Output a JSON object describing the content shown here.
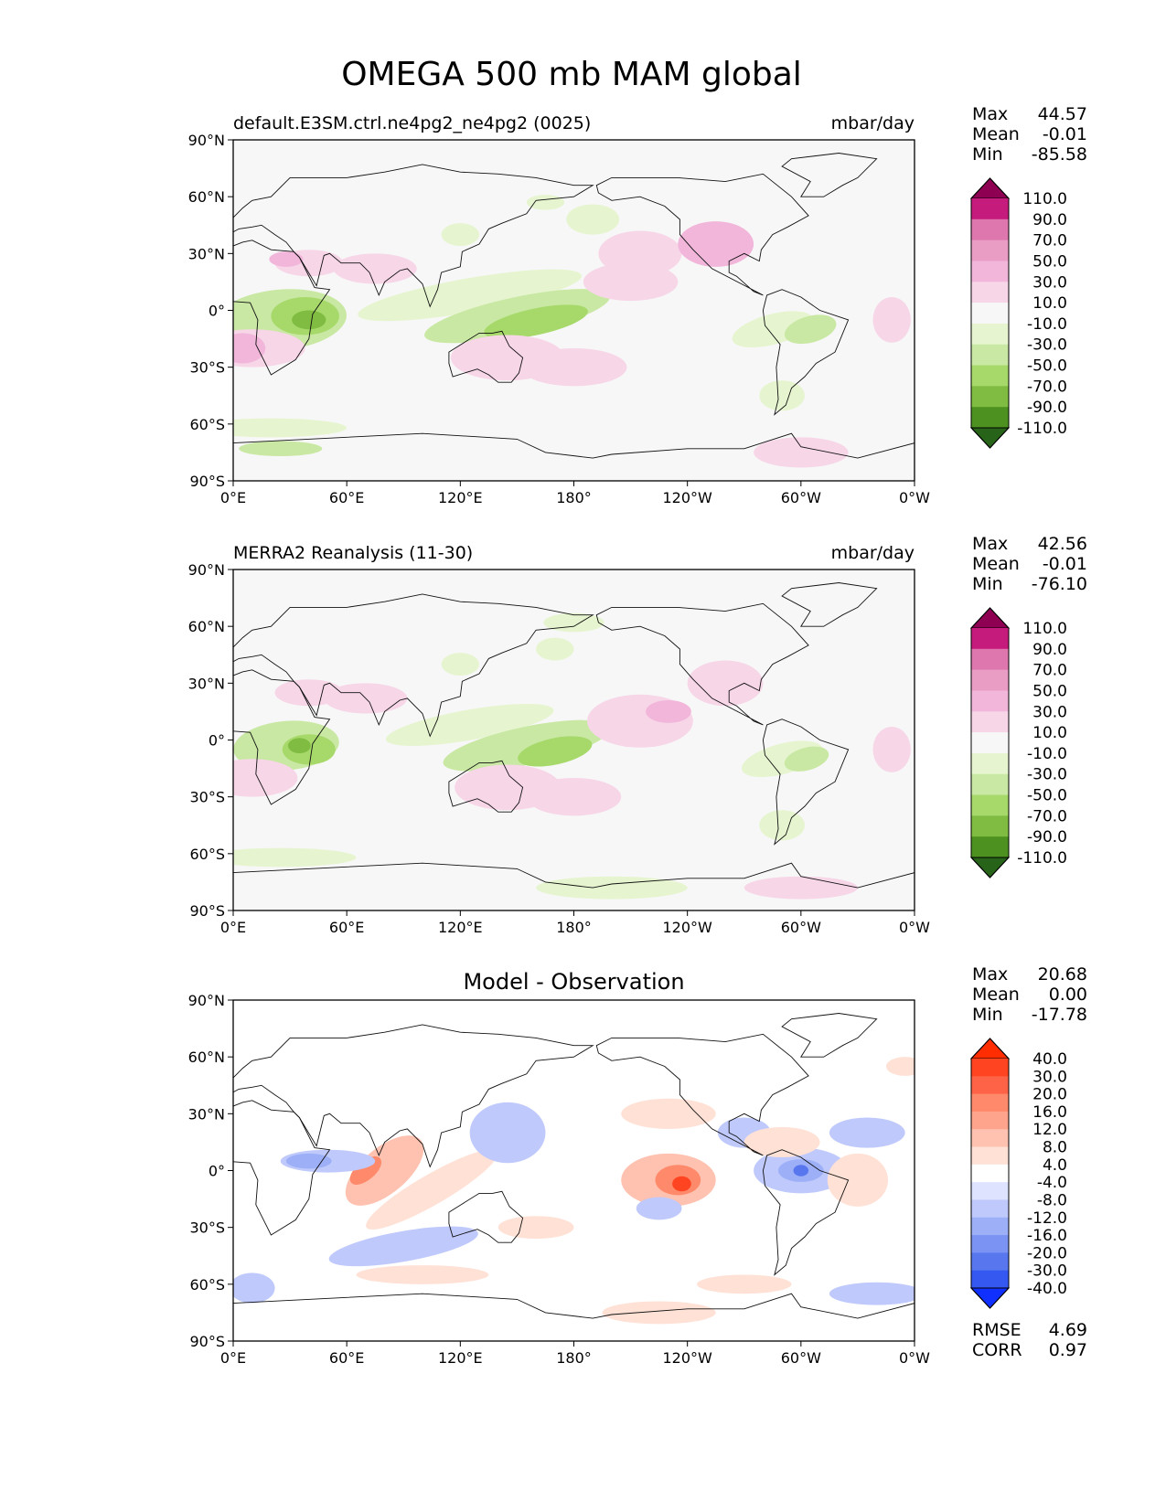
{
  "title": "OMEGA 500 mb MAM global",
  "lat_ticks": [
    "90°N",
    "60°N",
    "30°N",
    "0°",
    "30°S",
    "60°S",
    "90°S"
  ],
  "lon_ticks": [
    "0°E",
    "60°E",
    "120°E",
    "180°",
    "120°W",
    "60°W",
    "0°W"
  ],
  "panels": [
    {
      "id": "model",
      "title_left": "default.E3SM.ctrl.ne4pg2_ne4pg2 (0025)",
      "title_center": "",
      "units": "mbar/day",
      "stats": [
        {
          "label": "Max",
          "value": "44.57"
        },
        {
          "label": "Mean",
          "value": "-0.01"
        },
        {
          "label": "Min",
          "value": "-85.58"
        }
      ],
      "colorbar": {
        "labels": [
          "110.0",
          "90.0",
          "70.0",
          "50.0",
          "30.0",
          "10.0",
          "-10.0",
          "-30.0",
          "-50.0",
          "-70.0",
          "-90.0",
          "-110.0"
        ],
        "colors": [
          "#8e0152",
          "#c51b7d",
          "#de77ae",
          "#e99cc4",
          "#f1b6da",
          "#f7d6e8",
          "#f7f7f7",
          "#e6f5d0",
          "#c9e8a3",
          "#a6d96a",
          "#7fbc41",
          "#4d9221",
          "#276419"
        ]
      }
    },
    {
      "id": "obs",
      "title_left": "MERRA2 Reanalysis (11-30)",
      "title_center": "",
      "units": "mbar/day",
      "stats": [
        {
          "label": "Max",
          "value": "42.56"
        },
        {
          "label": "Mean",
          "value": "-0.01"
        },
        {
          "label": "Min",
          "value": "-76.10"
        }
      ],
      "colorbar": {
        "labels": [
          "110.0",
          "90.0",
          "70.0",
          "50.0",
          "30.0",
          "10.0",
          "-10.0",
          "-30.0",
          "-50.0",
          "-70.0",
          "-90.0",
          "-110.0"
        ],
        "colors": [
          "#8e0152",
          "#c51b7d",
          "#de77ae",
          "#e99cc4",
          "#f1b6da",
          "#f7d6e8",
          "#f7f7f7",
          "#e6f5d0",
          "#c9e8a3",
          "#a6d96a",
          "#7fbc41",
          "#4d9221",
          "#276419"
        ]
      }
    },
    {
      "id": "diff",
      "title_left": "",
      "title_center": "Model - Observation",
      "units": "",
      "stats": [
        {
          "label": "Max",
          "value": "20.68"
        },
        {
          "label": "Mean",
          "value": "0.00"
        },
        {
          "label": "Min",
          "value": "-17.78"
        }
      ],
      "extra_stats": [
        {
          "label": "RMSE",
          "value": "4.69"
        },
        {
          "label": "CORR",
          "value": "0.97"
        }
      ],
      "colorbar": {
        "labels": [
          "40.0",
          "30.0",
          "20.0",
          "16.0",
          "12.0",
          "8.0",
          "4.0",
          "-4.0",
          "-8.0",
          "-12.0",
          "-16.0",
          "-20.0",
          "-30.0",
          "-40.0"
        ],
        "colors": [
          "#ff2d00",
          "#ff4422",
          "#ff6347",
          "#ff8a6b",
          "#ffa48c",
          "#ffc2b0",
          "#ffe1d6",
          "#ffffff",
          "#dee3ff",
          "#bfc9fb",
          "#9caff7",
          "#7b93f3",
          "#5877ef",
          "#3558f0",
          "#1030ff"
        ]
      }
    }
  ],
  "chart_data": [
    {
      "type": "heatmap",
      "title": "default.E3SM.ctrl.ne4pg2_ne4pg2 (0025)",
      "units": "mbar/day",
      "x_ticks": [
        "0°E",
        "60°E",
        "120°E",
        "180°",
        "120°W",
        "60°W",
        "0°W"
      ],
      "y_ticks": [
        "90°N",
        "60°N",
        "30°N",
        "0°",
        "30°S",
        "60°S",
        "90°S"
      ],
      "stats": {
        "max": 44.57,
        "mean": -0.01,
        "min": -85.58
      },
      "levels": [
        -110,
        -90,
        -70,
        -50,
        -30,
        -10,
        10,
        30,
        50,
        70,
        90,
        110
      ]
    },
    {
      "type": "heatmap",
      "title": "MERRA2 Reanalysis (11-30)",
      "units": "mbar/day",
      "x_ticks": [
        "0°E",
        "60°E",
        "120°E",
        "180°",
        "120°W",
        "60°W",
        "0°W"
      ],
      "y_ticks": [
        "90°N",
        "60°N",
        "30°N",
        "0°",
        "30°S",
        "60°S",
        "90°S"
      ],
      "stats": {
        "max": 42.56,
        "mean": -0.01,
        "min": -76.1
      },
      "levels": [
        -110,
        -90,
        -70,
        -50,
        -30,
        -10,
        10,
        30,
        50,
        70,
        90,
        110
      ]
    },
    {
      "type": "heatmap",
      "title": "Model - Observation",
      "x_ticks": [
        "0°E",
        "60°E",
        "120°E",
        "180°",
        "120°W",
        "60°W",
        "0°W"
      ],
      "y_ticks": [
        "90°N",
        "60°N",
        "30°N",
        "0°",
        "30°S",
        "60°S",
        "90°S"
      ],
      "stats": {
        "max": 20.68,
        "mean": 0.0,
        "min": -17.78,
        "rmse": 4.69,
        "corr": 0.97
      },
      "levels": [
        -40,
        -30,
        -20,
        -16,
        -12,
        -8,
        -4,
        4,
        8,
        12,
        16,
        20,
        30,
        40
      ]
    }
  ]
}
